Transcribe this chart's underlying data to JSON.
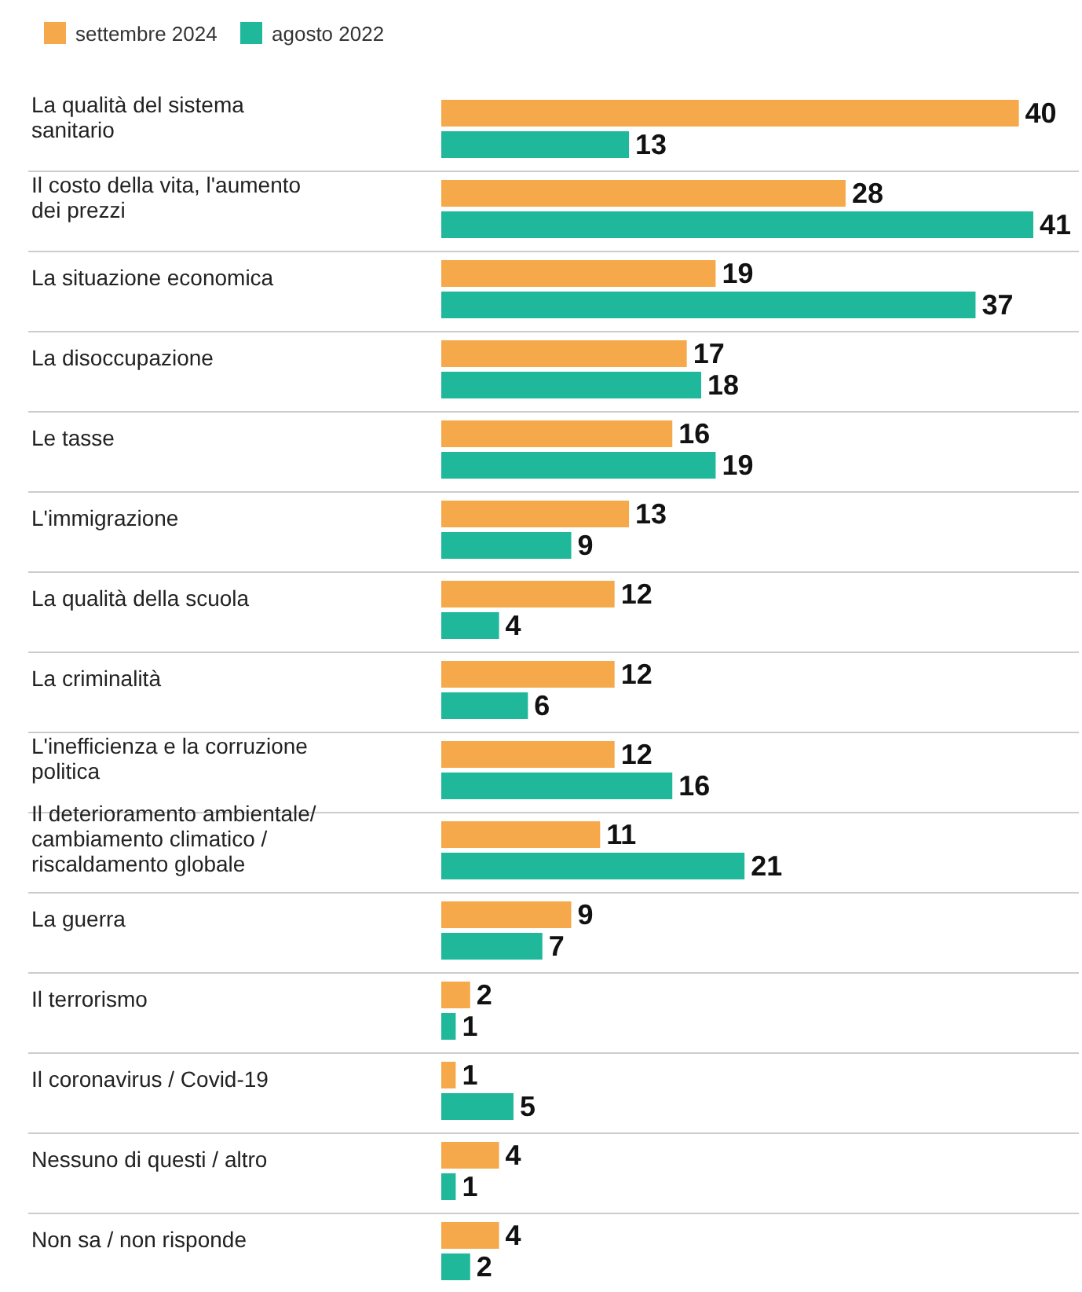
{
  "chart_data": {
    "type": "bar",
    "orientation": "horizontal",
    "legend": "top left",
    "data_labels": true,
    "categories": [
      "La qualità del sistema sanitario",
      "Il costo della vita, l'aumento dei prezzi",
      "La situazione economica",
      "La disoccupazione",
      "Le tasse",
      "L'immigrazione",
      "La qualità della scuola",
      "La criminalità",
      "L'inefficienza e la corruzione politica",
      "Il deterioramento ambientale/ cambiamento climatico / riscaldamento globale",
      "La guerra",
      "Il terrorismo",
      "Il coronavirus / Covid-19",
      "Nessuno di questi / altro",
      "Non sa / non risponde"
    ],
    "series": [
      {
        "name": "settembre 2024",
        "color": "#f5a94a",
        "values": [
          40,
          28,
          19,
          17,
          16,
          13,
          12,
          12,
          12,
          11,
          9,
          2,
          1,
          4,
          4
        ]
      },
      {
        "name": "agosto 2022",
        "color": "#1fb89a",
        "values": [
          13,
          41,
          37,
          18,
          19,
          9,
          4,
          6,
          16,
          21,
          7,
          1,
          5,
          1,
          2
        ]
      }
    ]
  }
}
